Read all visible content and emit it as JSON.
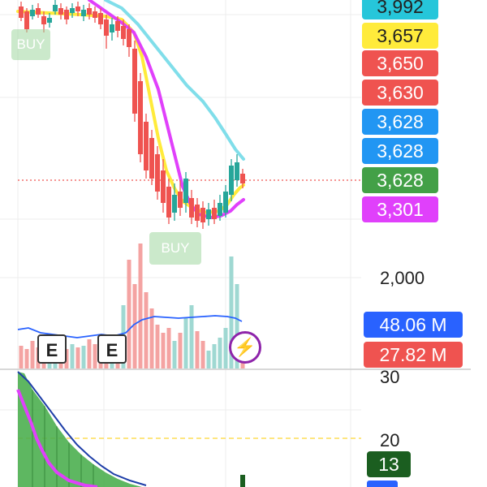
{
  "price_tags": [
    {
      "label": "3,992",
      "bg": "#26c6da",
      "fg": "#222222"
    },
    {
      "label": "3,657",
      "bg": "#ffeb3b",
      "fg": "#222222"
    },
    {
      "label": "3,650",
      "bg": "#ef5350",
      "fg": "#ffffff"
    },
    {
      "label": "3,630",
      "bg": "#ef5350",
      "fg": "#ffffff"
    },
    {
      "label": "3,628",
      "bg": "#2196f3",
      "fg": "#ffffff"
    },
    {
      "label": "3,628",
      "bg": "#2196f3",
      "fg": "#ffffff"
    },
    {
      "label": "3,628",
      "bg": "#43a047",
      "fg": "#ffffff"
    },
    {
      "label": "3,301",
      "bg": "#e040fb",
      "fg": "#ffffff"
    }
  ],
  "volume_axis": {
    "label": "2,000"
  },
  "volume_tags": [
    {
      "label": "48.06 M",
      "bg": "#2962ff"
    },
    {
      "label": "27.82 M",
      "bg": "#ef5350"
    }
  ],
  "indicator_axis": {
    "label_top": "30",
    "label_mid": "20"
  },
  "indicator_tag": {
    "label": "13",
    "bg": "#1b5e20"
  },
  "markers": {
    "buy_1": "BUY",
    "buy_2": "BUY",
    "earnings_1": "E",
    "earnings_2": "E"
  },
  "flash_icon": "lightning-icon",
  "colors": {
    "up": "#26a69a",
    "down": "#ef5350",
    "ma_fast": "#ffeb3b",
    "ma_slow": "#e040fb",
    "ma_long": "#80deea",
    "current_price_line": "#ef5350"
  }
}
